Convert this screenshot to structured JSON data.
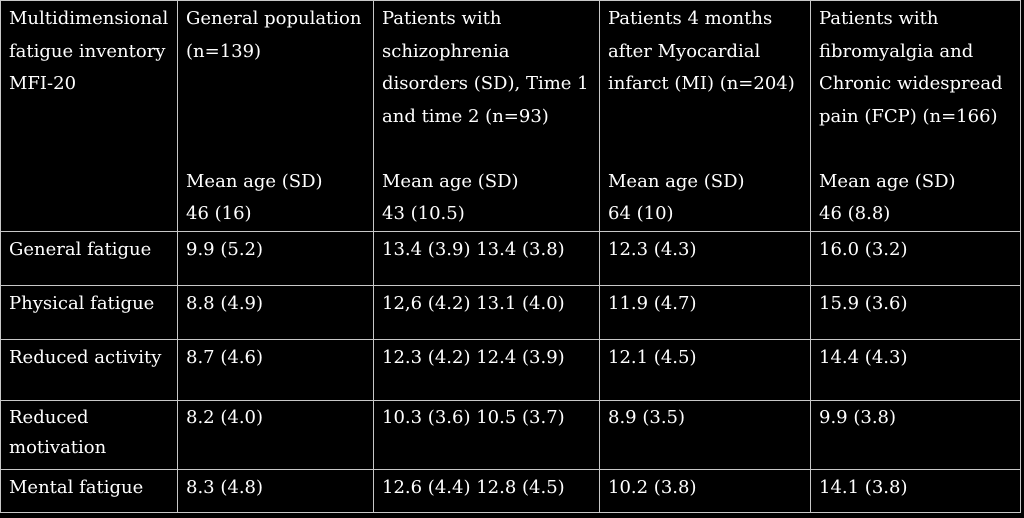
{
  "table": {
    "header": [
      {
        "lines": [
          "Multidimensional",
          "fatigue inventory",
          "MFI-20"
        ],
        "meta": []
      },
      {
        "lines": [
          "General population",
          " (n=139)"
        ],
        "meta": [
          "Mean age (SD)",
          "46 (16)"
        ]
      },
      {
        "lines": [
          "Patients with",
          "schizophrenia",
          "disorders (SD), Time 1",
          "and time 2 (n=93)"
        ],
        "meta": [
          "Mean age (SD)",
          "43 (10.5)"
        ]
      },
      {
        "lines": [
          "Patients 4 months",
          "after Myocardial",
          "infarct (MI) (n=204)"
        ],
        "meta": [
          "Mean age (SD)",
          " 64 (10)"
        ]
      },
      {
        "lines": [
          "Patients with",
          "fibromyalgia and",
          "Chronic widespread",
          "pain (FCP) (n=166)"
        ],
        "meta": [
          "Mean age (SD)",
          "46 (8.8)"
        ]
      }
    ],
    "rows": [
      {
        "label": [
          "General fatigue"
        ],
        "values": [
          "9.9 (5.2)",
          "13.4 (3.9) 13.4 (3.8)",
          "12.3 (4.3)",
          "16.0 (3.2)"
        ]
      },
      {
        "label": [
          "Physical fatigue"
        ],
        "values": [
          "8.8 (4.9)",
          "12,6 (4.2) 13.1 (4.0)",
          "11.9 (4.7)",
          "15.9 (3.6)"
        ]
      },
      {
        "label": [
          "Reduced activity"
        ],
        "values": [
          "8.7 (4.6)",
          "12.3 (4.2) 12.4 (3.9)",
          "12.1 (4.5)",
          "14.4 (4.3)"
        ]
      },
      {
        "label": [
          "Reduced",
          "motivation"
        ],
        "values": [
          "8.2 (4.0)",
          "10.3 (3.6) 10.5 (3.7)",
          "8.9 (3.5)",
          "9.9 (3.8)"
        ]
      },
      {
        "label": [
          "Mental fatigue"
        ],
        "values": [
          "8.3 (4.8)",
          "12.6 (4.4) 12.8 (4.5)",
          "10.2 (3.8)",
          "14.1 (3.8)"
        ]
      }
    ]
  }
}
